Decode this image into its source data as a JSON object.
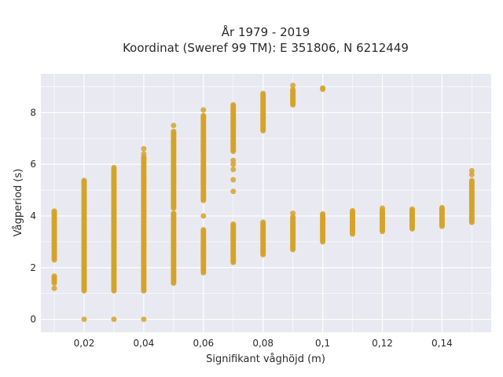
{
  "chart_data": {
    "type": "scatter",
    "title_lines": [
      "År 1979 - 2019",
      "Koordinat (Sweref 99 TM): E 351806, N 6212449"
    ],
    "xlabel": "Signifikant våghöjd (m)",
    "ylabel": "Vågperiod (s)",
    "xlim": [
      0.0055,
      0.1565
    ],
    "ylim": [
      -0.5,
      9.5
    ],
    "xticks": [
      0.02,
      0.04,
      0.06,
      0.08,
      0.1,
      0.12,
      0.14
    ],
    "xtick_labels": [
      "0,02",
      "0,04",
      "0,06",
      "0,08",
      "0,1",
      "0,12",
      "0,14"
    ],
    "yticks": [
      0,
      2,
      4,
      6,
      8
    ],
    "ytick_labels": [
      "0",
      "2",
      "4",
      "6",
      "8"
    ],
    "grid": true,
    "marker_color": "#d4a32a",
    "plot_background": "#e9e9f2",
    "columns": [
      {
        "x": 0.01,
        "ranges": [
          [
            2.3,
            4.2
          ],
          [
            1.4,
            1.7
          ]
        ],
        "points": [
          1.2
        ]
      },
      {
        "x": 0.02,
        "ranges": [
          [
            1.1,
            5.4
          ]
        ],
        "points": [
          0
        ]
      },
      {
        "x": 0.03,
        "ranges": [
          [
            1.1,
            5.9
          ]
        ],
        "points": [
          0
        ]
      },
      {
        "x": 0.04,
        "ranges": [
          [
            1.1,
            6.3
          ]
        ],
        "points": [
          0,
          6.4,
          6.6
        ]
      },
      {
        "x": 0.05,
        "ranges": [
          [
            1.4,
            4.1
          ],
          [
            4.3,
            7.3
          ]
        ],
        "points": [
          7.5
        ]
      },
      {
        "x": 0.06,
        "ranges": [
          [
            1.8,
            3.5
          ],
          [
            4.6,
            7.9
          ]
        ],
        "points": [
          4.0,
          5.3,
          8.1
        ]
      },
      {
        "x": 0.07,
        "ranges": [
          [
            2.2,
            3.7
          ],
          [
            6.5,
            8.3
          ]
        ],
        "points": [
          4.95,
          5.4,
          5.8,
          6.0,
          6.15
        ]
      },
      {
        "x": 0.08,
        "ranges": [
          [
            2.5,
            3.8
          ],
          [
            7.3,
            8.75
          ]
        ],
        "points": []
      },
      {
        "x": 0.09,
        "ranges": [
          [
            2.7,
            4.0
          ],
          [
            8.3,
            8.9
          ]
        ],
        "points": [
          4.1,
          9.05
        ]
      },
      {
        "x": 0.1,
        "ranges": [
          [
            3.0,
            4.1
          ]
        ],
        "points": [
          8.9,
          8.95
        ]
      },
      {
        "x": 0.11,
        "ranges": [
          [
            3.3,
            4.2
          ]
        ],
        "points": []
      },
      {
        "x": 0.12,
        "ranges": [
          [
            3.4,
            4.25
          ]
        ],
        "points": [
          4.3
        ]
      },
      {
        "x": 0.13,
        "ranges": [
          [
            3.5,
            4.3
          ]
        ],
        "points": []
      },
      {
        "x": 0.14,
        "ranges": [
          [
            3.6,
            4.35
          ]
        ],
        "points": []
      },
      {
        "x": 0.15,
        "ranges": [
          [
            3.75,
            5.4
          ]
        ],
        "points": [
          5.6,
          5.75
        ]
      }
    ]
  }
}
